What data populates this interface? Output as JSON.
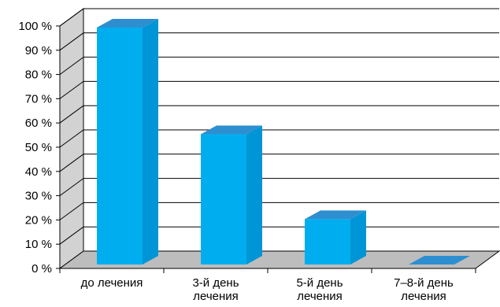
{
  "chart_data": {
    "type": "bar",
    "categories": [
      [
        "до лечения"
      ],
      [
        "3-й день",
        "лечения"
      ],
      [
        "5-й день",
        "лечения"
      ],
      [
        "7–8-й день",
        "лечения"
      ]
    ],
    "values": [
      100,
      56,
      21,
      0
    ],
    "yticks": [
      "0 %",
      "10 %",
      "20 %",
      "30 %",
      "40 %",
      "50 %",
      "60 %",
      "70 %",
      "80 %",
      "90 %",
      "100 %"
    ],
    "ylim": [
      0,
      100
    ],
    "grid": true,
    "legend": "none",
    "colors": {
      "bar_front": "#00AEEF",
      "bar_top": "#2E8FD0",
      "bar_side": "#0095D6",
      "wall": "#D2D2D2",
      "floor": "#BDBDBD",
      "grid": "#000000"
    }
  }
}
